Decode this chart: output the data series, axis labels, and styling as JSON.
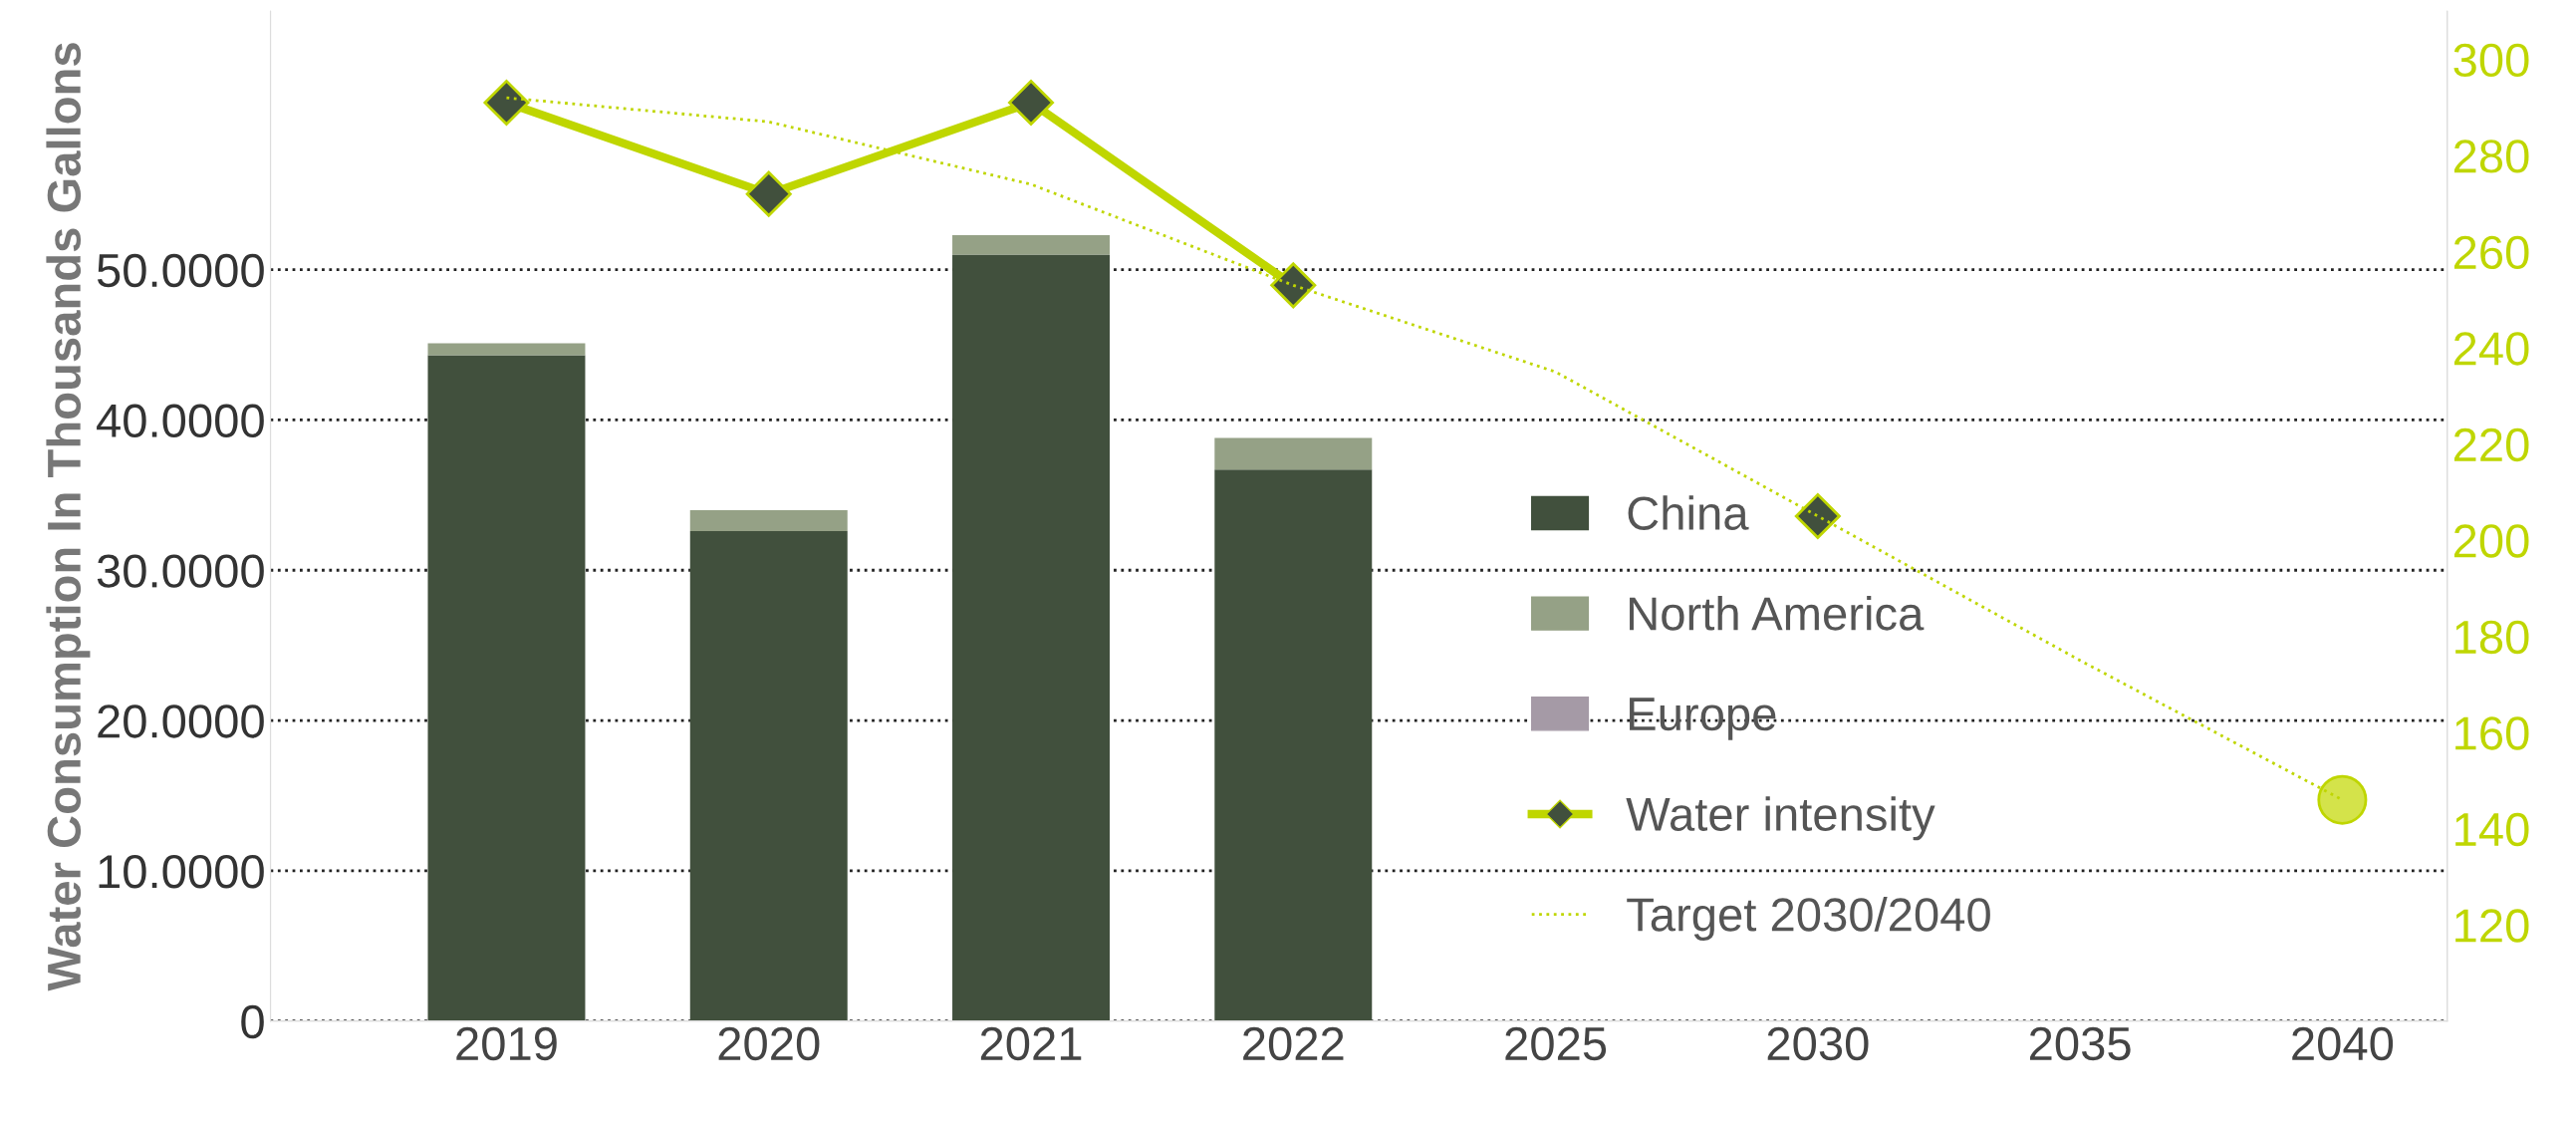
{
  "chart_data": {
    "type": "bar",
    "stacked": true,
    "ylabel": "Water Consumption In Thousands Gallons",
    "categories": [
      "2019",
      "2020",
      "2021",
      "2022",
      "2025",
      "2030",
      "2035",
      "2040"
    ],
    "series": [
      {
        "name": "China",
        "color": "#41503d",
        "values": [
          44.3,
          32.6,
          51.0,
          36.7,
          null,
          null,
          null,
          null
        ]
      },
      {
        "name": "North America",
        "color": "#95a186",
        "values": [
          0.8,
          1.4,
          1.3,
          2.1,
          null,
          null,
          null,
          null
        ]
      },
      {
        "name": "Europe",
        "color": "#a59aa6",
        "values": [
          0,
          0,
          0,
          0,
          null,
          null,
          null,
          null
        ]
      },
      {
        "name": "Water intensity",
        "type": "line",
        "axis": "y2",
        "color": "#bfd600",
        "marker": "diamond",
        "line_style": "solid",
        "values": [
          291,
          272,
          291,
          253,
          null,
          null,
          null,
          null
        ]
      },
      {
        "name": "Target 2030/2040",
        "type": "line",
        "axis": "y2",
        "color": "#bfd600",
        "marker": "none",
        "line_style": "dotted",
        "values": [
          292,
          287,
          274,
          253,
          235,
          205,
          175,
          146
        ]
      },
      {
        "type": "scatter",
        "axis": "y2",
        "color": "#41503d",
        "marker": "diamond",
        "values": [
          null,
          null,
          null,
          null,
          null,
          205,
          null,
          null
        ]
      },
      {
        "type": "scatter",
        "axis": "y2",
        "color": "#d4e34a",
        "marker": "circle",
        "values": [
          null,
          null,
          null,
          null,
          null,
          null,
          null,
          146
        ]
      }
    ],
    "ylim": [
      0,
      67.2
    ],
    "yticks": [
      {
        "value": 0,
        "label": "0"
      },
      {
        "value": 10,
        "label": "10.0000"
      },
      {
        "value": 20,
        "label": "20.0000"
      },
      {
        "value": 30,
        "label": "30.0000"
      },
      {
        "value": 40,
        "label": "40.0000"
      },
      {
        "value": 50,
        "label": "50.0000"
      }
    ],
    "y2lim": [
      100,
      310
    ],
    "y2ticks": [
      120,
      140,
      160,
      180,
      200,
      220,
      240,
      260,
      280,
      300
    ],
    "grid": "y",
    "legend": "right"
  }
}
